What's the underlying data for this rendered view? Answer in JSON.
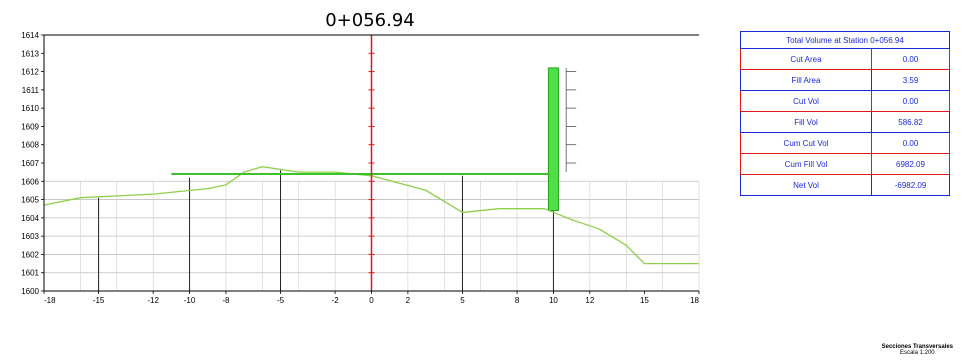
{
  "section": {
    "station_title": "0+056.94",
    "y_ticks": [
      "1614",
      "1613",
      "1612",
      "1611",
      "1610",
      "1609",
      "1608",
      "1607",
      "1606",
      "1605",
      "1604",
      "1603",
      "1602",
      "1601",
      "1600"
    ],
    "x_ticks": [
      "-18",
      "-15",
      "-12",
      "-10",
      "-8",
      "-5",
      "-2",
      "0",
      "2",
      "5",
      "8",
      "10",
      "12",
      "15",
      "18"
    ]
  },
  "chart_data": {
    "type": "line",
    "title": "0+056.94",
    "xlim": [
      -18,
      18
    ],
    "ylim": [
      1600,
      1614
    ],
    "grid": true,
    "series": [
      {
        "role": "ground",
        "color": "#8ed04a",
        "points": [
          [
            -18,
            1604.7
          ],
          [
            -16,
            1605.1
          ],
          [
            -12,
            1605.3
          ],
          [
            -9,
            1605.6
          ],
          [
            -8,
            1605.8
          ],
          [
            -7,
            1606.5
          ],
          [
            -6,
            1606.8
          ],
          [
            -4,
            1606.5
          ],
          [
            -2,
            1606.5
          ],
          [
            0,
            1606.3
          ],
          [
            3,
            1605.5
          ],
          [
            5,
            1604.3
          ],
          [
            7,
            1604.5
          ],
          [
            9.5,
            1604.5
          ],
          [
            11,
            1603.9
          ],
          [
            12.5,
            1603.4
          ],
          [
            14,
            1602.5
          ],
          [
            15,
            1601.5
          ],
          [
            17,
            1601.5
          ],
          [
            18,
            1601.5
          ]
        ]
      },
      {
        "role": "design",
        "color": "#3cc22a",
        "points": [
          [
            -11,
            1606.4
          ],
          [
            9.8,
            1606.4
          ]
        ]
      }
    ],
    "reference_lines": [
      {
        "x": 0,
        "color": "#e01818",
        "orientation": "vertical"
      }
    ],
    "vertical_marks": [
      {
        "x": -15,
        "top": 1605.1
      },
      {
        "x": -10,
        "top": 1606.2
      },
      {
        "x": -5,
        "top": 1606.6
      },
      {
        "x": 5,
        "top": 1606.3
      },
      {
        "x": 10,
        "top": 1606.3
      }
    ],
    "fill_bar": {
      "x": 10,
      "from": 1604.4,
      "to": 1612.2,
      "color": "#4fe048"
    },
    "right_ruler": {
      "x": 10.7,
      "from": 1606.5,
      "to": 1612.2
    }
  },
  "volume_table": {
    "header": "Total Volume at Station 0+056.94",
    "rows": [
      {
        "label": "Cut Area",
        "value": "0.00"
      },
      {
        "label": "Fill Area",
        "value": "3.59"
      },
      {
        "label": "Cut Vol",
        "value": "0.00"
      },
      {
        "label": "Fill Vol",
        "value": "586.82"
      },
      {
        "label": "Cum Cut Vol",
        "value": "0.00"
      },
      {
        "label": "Cum Fill Vol",
        "value": "6982.09"
      },
      {
        "label": "Net Vol",
        "value": "-6982.09"
      }
    ]
  },
  "footer": {
    "title": "Secciones Transversales",
    "scale": "Escala 1:200"
  }
}
